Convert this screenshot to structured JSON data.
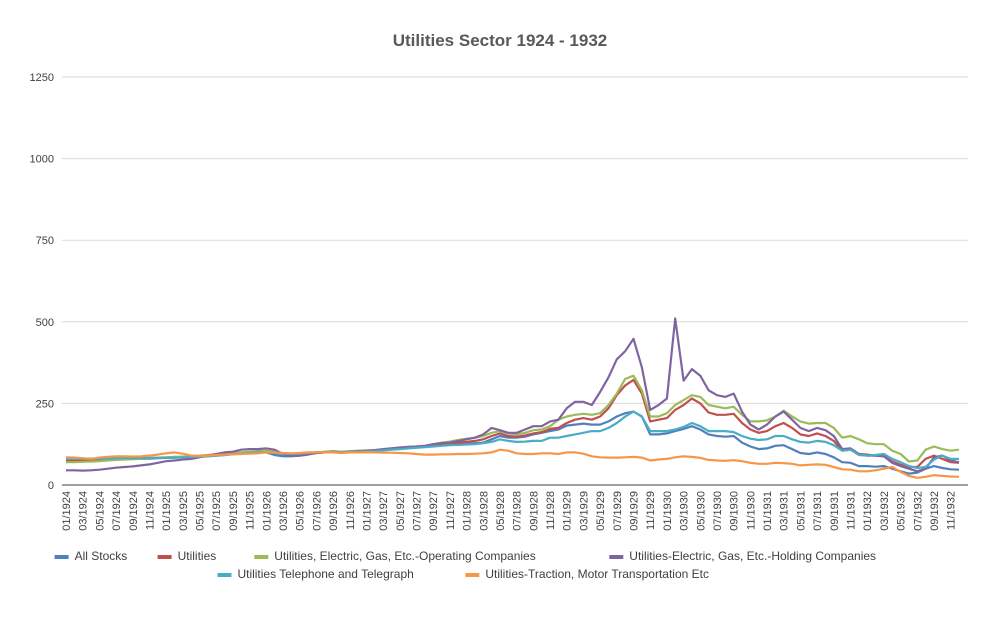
{
  "chart_data": {
    "type": "line",
    "title": "Utilities Sector 1924 - 1932",
    "xlabel": "",
    "ylabel": "",
    "ylim": [
      0,
      1250
    ],
    "yticks": [
      0,
      250,
      500,
      750,
      1000,
      1250
    ],
    "grid": true,
    "legend_position": "bottom",
    "x_start": "01/1924",
    "x_end": "12/1932",
    "x_tick_interval_months": 2,
    "series": [
      {
        "name": "All Stocks",
        "color": "#4F81BD",
        "values": [
          78,
          77,
          76,
          75,
          75,
          76,
          78,
          79,
          80,
          80,
          81,
          82,
          83,
          84,
          85,
          85,
          86,
          88,
          90,
          92,
          95,
          97,
          98,
          100,
          100,
          92,
          88,
          88,
          90,
          95,
          98,
          100,
          102,
          100,
          102,
          103,
          104,
          105,
          107,
          110,
          112,
          114,
          116,
          118,
          122,
          125,
          127,
          128,
          128,
          128,
          130,
          140,
          150,
          145,
          145,
          148,
          155,
          160,
          165,
          170,
          182,
          185,
          188,
          185,
          185,
          195,
          210,
          220,
          225,
          210,
          155,
          155,
          158,
          165,
          172,
          180,
          170,
          155,
          150,
          148,
          150,
          130,
          118,
          110,
          112,
          120,
          122,
          110,
          98,
          95,
          100,
          95,
          85,
          70,
          68,
          58,
          58,
          56,
          58,
          50,
          42,
          35,
          38,
          50,
          58,
          52,
          48,
          47
        ]
      },
      {
        "name": "Utilities",
        "color": "#C0504D",
        "values": [
          75,
          75,
          76,
          76,
          77,
          78,
          80,
          80,
          80,
          81,
          82,
          83,
          84,
          85,
          86,
          87,
          88,
          90,
          92,
          94,
          97,
          99,
          100,
          102,
          103,
          100,
          95,
          93,
          94,
          97,
          99,
          100,
          102,
          100,
          102,
          103,
          104,
          105,
          107,
          110,
          112,
          114,
          116,
          118,
          122,
          125,
          127,
          130,
          132,
          135,
          140,
          150,
          158,
          150,
          148,
          152,
          158,
          162,
          172,
          175,
          190,
          200,
          205,
          200,
          210,
          235,
          275,
          305,
          322,
          280,
          195,
          200,
          205,
          230,
          245,
          265,
          250,
          222,
          215,
          215,
          218,
          190,
          170,
          160,
          165,
          180,
          190,
          175,
          155,
          150,
          158,
          150,
          135,
          105,
          108,
          95,
          93,
          90,
          88,
          72,
          62,
          55,
          55,
          80,
          90,
          80,
          70,
          68
        ]
      },
      {
        "name": "Utilities, Electric, Gas, Etc.-Operating Companies",
        "color": "#9BBB59",
        "values": [
          70,
          70,
          71,
          72,
          73,
          75,
          77,
          78,
          79,
          80,
          82,
          84,
          85,
          86,
          87,
          88,
          90,
          92,
          94,
          96,
          98,
          100,
          102,
          104,
          105,
          102,
          96,
          94,
          95,
          98,
          100,
          102,
          104,
          102,
          104,
          105,
          106,
          107,
          109,
          112,
          114,
          116,
          118,
          120,
          125,
          130,
          133,
          138,
          142,
          145,
          150,
          160,
          165,
          158,
          155,
          160,
          168,
          170,
          180,
          200,
          210,
          215,
          218,
          215,
          220,
          245,
          280,
          325,
          335,
          290,
          210,
          210,
          220,
          245,
          260,
          275,
          270,
          245,
          240,
          235,
          240,
          215,
          195,
          195,
          198,
          210,
          228,
          210,
          195,
          188,
          190,
          190,
          175,
          145,
          150,
          140,
          128,
          125,
          125,
          105,
          95,
          72,
          75,
          108,
          118,
          110,
          105,
          108
        ]
      },
      {
        "name": "Utilities-Electric, Gas, Etc.-Holding Companies",
        "color": "#8064A2",
        "values": [
          45,
          45,
          44,
          45,
          47,
          50,
          53,
          55,
          57,
          60,
          63,
          68,
          73,
          75,
          78,
          80,
          85,
          90,
          95,
          100,
          102,
          108,
          110,
          110,
          112,
          108,
          95,
          90,
          90,
          93,
          98,
          100,
          102,
          100,
          102,
          104,
          105,
          107,
          110,
          112,
          115,
          117,
          118,
          120,
          125,
          128,
          130,
          135,
          140,
          145,
          155,
          175,
          168,
          160,
          160,
          170,
          180,
          180,
          195,
          200,
          235,
          255,
          255,
          245,
          285,
          330,
          385,
          410,
          448,
          360,
          230,
          245,
          265,
          510,
          320,
          355,
          335,
          290,
          275,
          270,
          280,
          225,
          185,
          170,
          185,
          210,
          225,
          200,
          175,
          165,
          175,
          168,
          150,
          110,
          112,
          95,
          90,
          90,
          88,
          68,
          58,
          50,
          42,
          50,
          85,
          90,
          75,
          70
        ]
      },
      {
        "name": "Utilities Telephone and Telegraph",
        "color": "#4BACC6",
        "values": [
          80,
          80,
          81,
          81,
          81,
          81,
          82,
          82,
          82,
          82,
          83,
          83,
          84,
          84,
          85,
          86,
          87,
          88,
          90,
          92,
          94,
          96,
          98,
          100,
          100,
          98,
          96,
          95,
          96,
          98,
          100,
          100,
          101,
          100,
          101,
          102,
          103,
          104,
          106,
          108,
          110,
          112,
          114,
          116,
          118,
          120,
          122,
          123,
          124,
          125,
          128,
          132,
          140,
          135,
          132,
          133,
          135,
          135,
          145,
          145,
          150,
          155,
          160,
          165,
          165,
          175,
          190,
          210,
          225,
          210,
          165,
          165,
          165,
          170,
          178,
          190,
          180,
          165,
          165,
          165,
          162,
          150,
          142,
          138,
          140,
          150,
          150,
          140,
          132,
          130,
          135,
          132,
          122,
          105,
          108,
          92,
          90,
          92,
          95,
          80,
          70,
          58,
          52,
          55,
          78,
          90,
          80,
          80
        ]
      },
      {
        "name": "Utilities-Traction, Motor Transportation Etc",
        "color": "#F79646",
        "values": [
          85,
          84,
          82,
          80,
          84,
          86,
          88,
          88,
          87,
          88,
          90,
          93,
          97,
          100,
          96,
          90,
          89,
          90,
          92,
          93,
          94,
          95,
          96,
          97,
          100,
          100,
          98,
          97,
          98,
          100,
          100,
          100,
          100,
          98,
          100,
          100,
          100,
          100,
          99,
          99,
          98,
          97,
          95,
          93,
          93,
          94,
          94,
          95,
          95,
          96,
          97,
          100,
          108,
          105,
          97,
          95,
          95,
          97,
          97,
          95,
          100,
          100,
          96,
          88,
          85,
          84,
          84,
          85,
          86,
          84,
          75,
          78,
          80,
          85,
          88,
          86,
          83,
          77,
          75,
          74,
          76,
          73,
          68,
          65,
          65,
          68,
          67,
          65,
          60,
          62,
          63,
          62,
          55,
          48,
          47,
          42,
          42,
          45,
          50,
          55,
          40,
          28,
          22,
          25,
          30,
          28,
          26,
          25
        ]
      }
    ]
  }
}
